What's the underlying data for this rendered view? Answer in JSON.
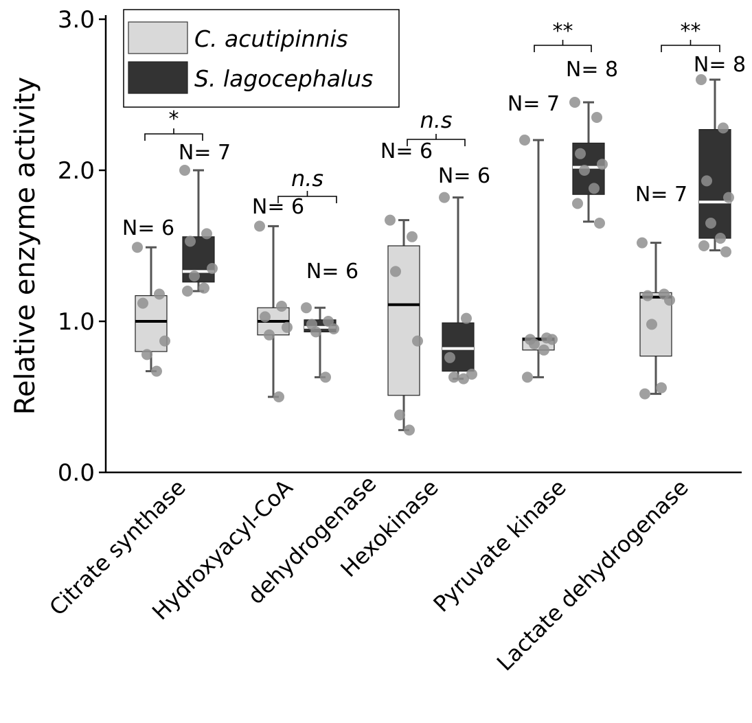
{
  "chart_data": {
    "type": "box",
    "ylabel": "Relative enzyme activity",
    "xlabel": "",
    "ylim": [
      0,
      3.0
    ],
    "yticks": [
      0.0,
      1.0,
      2.0,
      3.0
    ],
    "ytick_labels": [
      "0.0",
      "1.0",
      "2.0",
      "3.0"
    ],
    "grid": false,
    "legend": {
      "position": "top-left",
      "entries": [
        {
          "name": "C. acutipinnis",
          "color": "#d9d9d9"
        },
        {
          "name": "S. lagocephalus",
          "color": "#333333"
        }
      ]
    },
    "categories": [
      {
        "label_lines": [
          "Citrate synthase"
        ]
      },
      {
        "label_lines": [
          "Hydroxyacyl-CoA",
          "dehydrogenase"
        ]
      },
      {
        "label_lines": [
          "Hexokinase"
        ]
      },
      {
        "label_lines": [
          "Pyruvate kinase"
        ]
      },
      {
        "label_lines": [
          "Lactate dehydrogenase"
        ]
      }
    ],
    "significance": [
      "*",
      "n.s",
      "n.s",
      "**",
      "**"
    ],
    "series": [
      {
        "name": "C. acutipinnis",
        "box_color": "#d9d9d9",
        "median_color": "#000000",
        "boxes": [
          {
            "n_label": "N= 6",
            "whisker_low": 0.67,
            "q1": 0.8,
            "median": 1.0,
            "q3": 1.17,
            "whisker_high": 1.49,
            "points": [
              1.49,
              1.18,
              1.12,
              0.87,
              0.78,
              0.67
            ]
          },
          {
            "n_label": "N= 6",
            "whisker_low": 0.5,
            "q1": 0.91,
            "median": 1.0,
            "q3": 1.09,
            "whisker_high": 1.63,
            "points": [
              1.63,
              1.1,
              1.03,
              0.96,
              0.91,
              0.5
            ]
          },
          {
            "n_label": "N= 6",
            "whisker_low": 0.28,
            "q1": 0.51,
            "median": 1.11,
            "q3": 1.5,
            "whisker_high": 1.67,
            "points": [
              1.67,
              1.56,
              1.33,
              0.87,
              0.38,
              0.28
            ]
          },
          {
            "n_label": "N= 7",
            "whisker_low": 0.63,
            "q1": 0.81,
            "median": 0.88,
            "q3": 0.89,
            "whisker_high": 2.2,
            "points": [
              2.2,
              0.89,
              0.88,
              0.88,
              0.85,
              0.81,
              0.63
            ]
          },
          {
            "n_label": "N= 7",
            "whisker_low": 0.52,
            "q1": 0.77,
            "median": 1.16,
            "q3": 1.19,
            "whisker_high": 1.52,
            "points": [
              1.52,
              1.18,
              1.17,
              1.14,
              0.98,
              0.56,
              0.52
            ]
          }
        ]
      },
      {
        "name": "S. lagocephalus",
        "box_color": "#333333",
        "median_color": "#ffffff",
        "boxes": [
          {
            "n_label": "N= 7",
            "whisker_low": 1.2,
            "q1": 1.26,
            "median": 1.33,
            "q3": 1.56,
            "whisker_high": 2.0,
            "points": [
              2.0,
              1.58,
              1.53,
              1.35,
              1.3,
              1.22,
              1.2
            ]
          },
          {
            "n_label": "N= 6",
            "whisker_low": 0.63,
            "q1": 0.93,
            "median": 0.96,
            "q3": 1.01,
            "whisker_high": 1.09,
            "points": [
              1.09,
              1.0,
              0.98,
              0.95,
              0.93,
              0.63
            ]
          },
          {
            "n_label": "N= 6",
            "whisker_low": 0.62,
            "q1": 0.67,
            "median": 0.82,
            "q3": 0.99,
            "whisker_high": 1.82,
            "points": [
              1.82,
              1.02,
              0.76,
              0.65,
              0.63,
              0.62
            ]
          },
          {
            "n_label": "N= 8",
            "whisker_low": 1.66,
            "q1": 1.84,
            "median": 2.02,
            "q3": 2.18,
            "whisker_high": 2.45,
            "points": [
              2.45,
              2.35,
              2.11,
              2.04,
              2.0,
              1.88,
              1.78,
              1.65
            ]
          },
          {
            "n_label": "N= 8",
            "whisker_low": 1.47,
            "q1": 1.55,
            "median": 1.79,
            "q3": 2.27,
            "whisker_high": 2.6,
            "points": [
              2.6,
              2.28,
              1.93,
              1.82,
              1.65,
              1.55,
              1.5,
              1.46
            ]
          }
        ]
      }
    ]
  }
}
